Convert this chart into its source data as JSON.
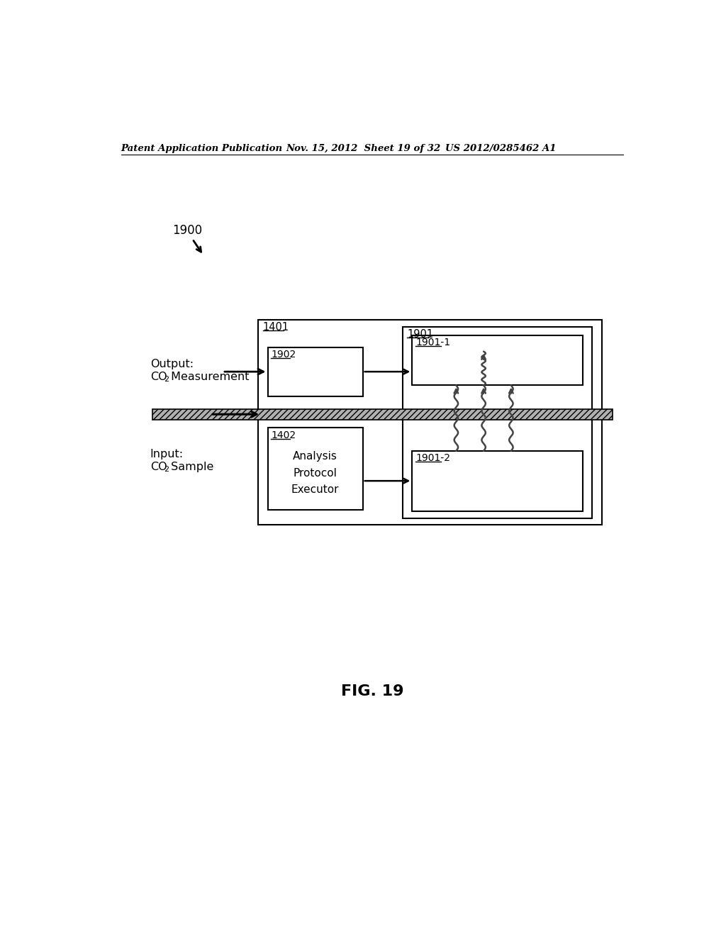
{
  "header_left": "Patent Application Publication",
  "header_mid": "Nov. 15, 2012  Sheet 19 of 32",
  "header_right": "US 2012/0285462 A1",
  "fig_label": "FIG. 19",
  "label_1900": "1900",
  "label_1401": "1401",
  "label_1901": "1901",
  "label_1902": "1902",
  "label_1901_1": "1901-1",
  "label_1402": "1402",
  "label_1901_2": "1901-2",
  "output_line1": "Output:",
  "output_line2": "CO",
  "output_sub2": "2",
  "output_line2b": " Measurement",
  "input_line1": "Input:",
  "input_line2": "CO",
  "input_sub2": "2",
  "input_line2b": " Sample",
  "executor_text": "Analysis\nProtocol\nExecutor",
  "bg_color": "#ffffff",
  "box_color": "#000000",
  "arrow_color": "#000000",
  "wavy_color": "#444444"
}
